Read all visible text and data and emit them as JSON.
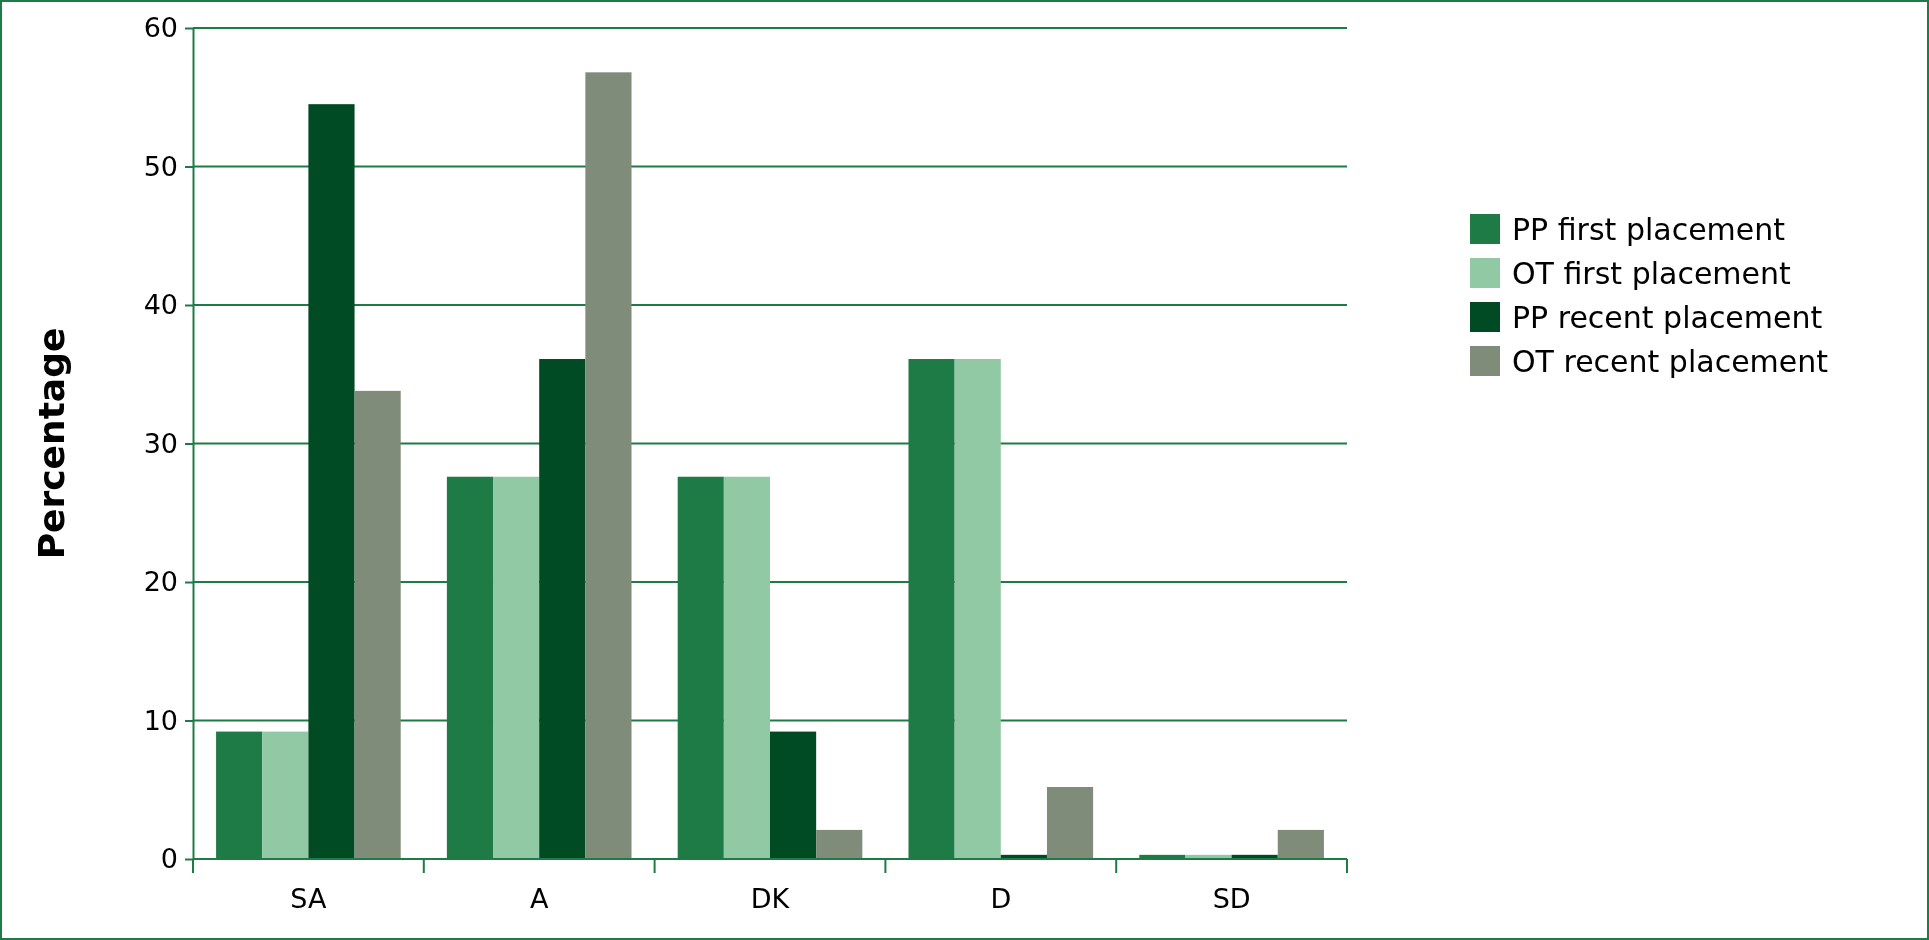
{
  "chart_data": {
    "type": "bar",
    "ylabel": "Percentage",
    "categories": [
      "SA",
      "A",
      "DK",
      "D",
      "SD"
    ],
    "series": [
      {
        "name": "PP first placement",
        "color": "#1e7b45",
        "values": [
          9.2,
          27.6,
          27.6,
          36.1,
          0.3
        ]
      },
      {
        "name": "OT first placement",
        "color": "#90c9a4",
        "values": [
          9.2,
          27.6,
          27.6,
          36.1,
          0.3
        ]
      },
      {
        "name": "PP recent placement",
        "color": "#004a24",
        "values": [
          54.5,
          36.1,
          9.2,
          0.3,
          0.3
        ]
      },
      {
        "name": "OT recent placement",
        "color": "#7f8c7a",
        "values": [
          33.8,
          56.8,
          2.1,
          5.2,
          2.1
        ]
      }
    ],
    "ylim": [
      0,
      60
    ],
    "yticks": [
      0,
      10,
      20,
      30,
      40,
      50,
      60
    ],
    "grid": "y",
    "legend": "right"
  }
}
